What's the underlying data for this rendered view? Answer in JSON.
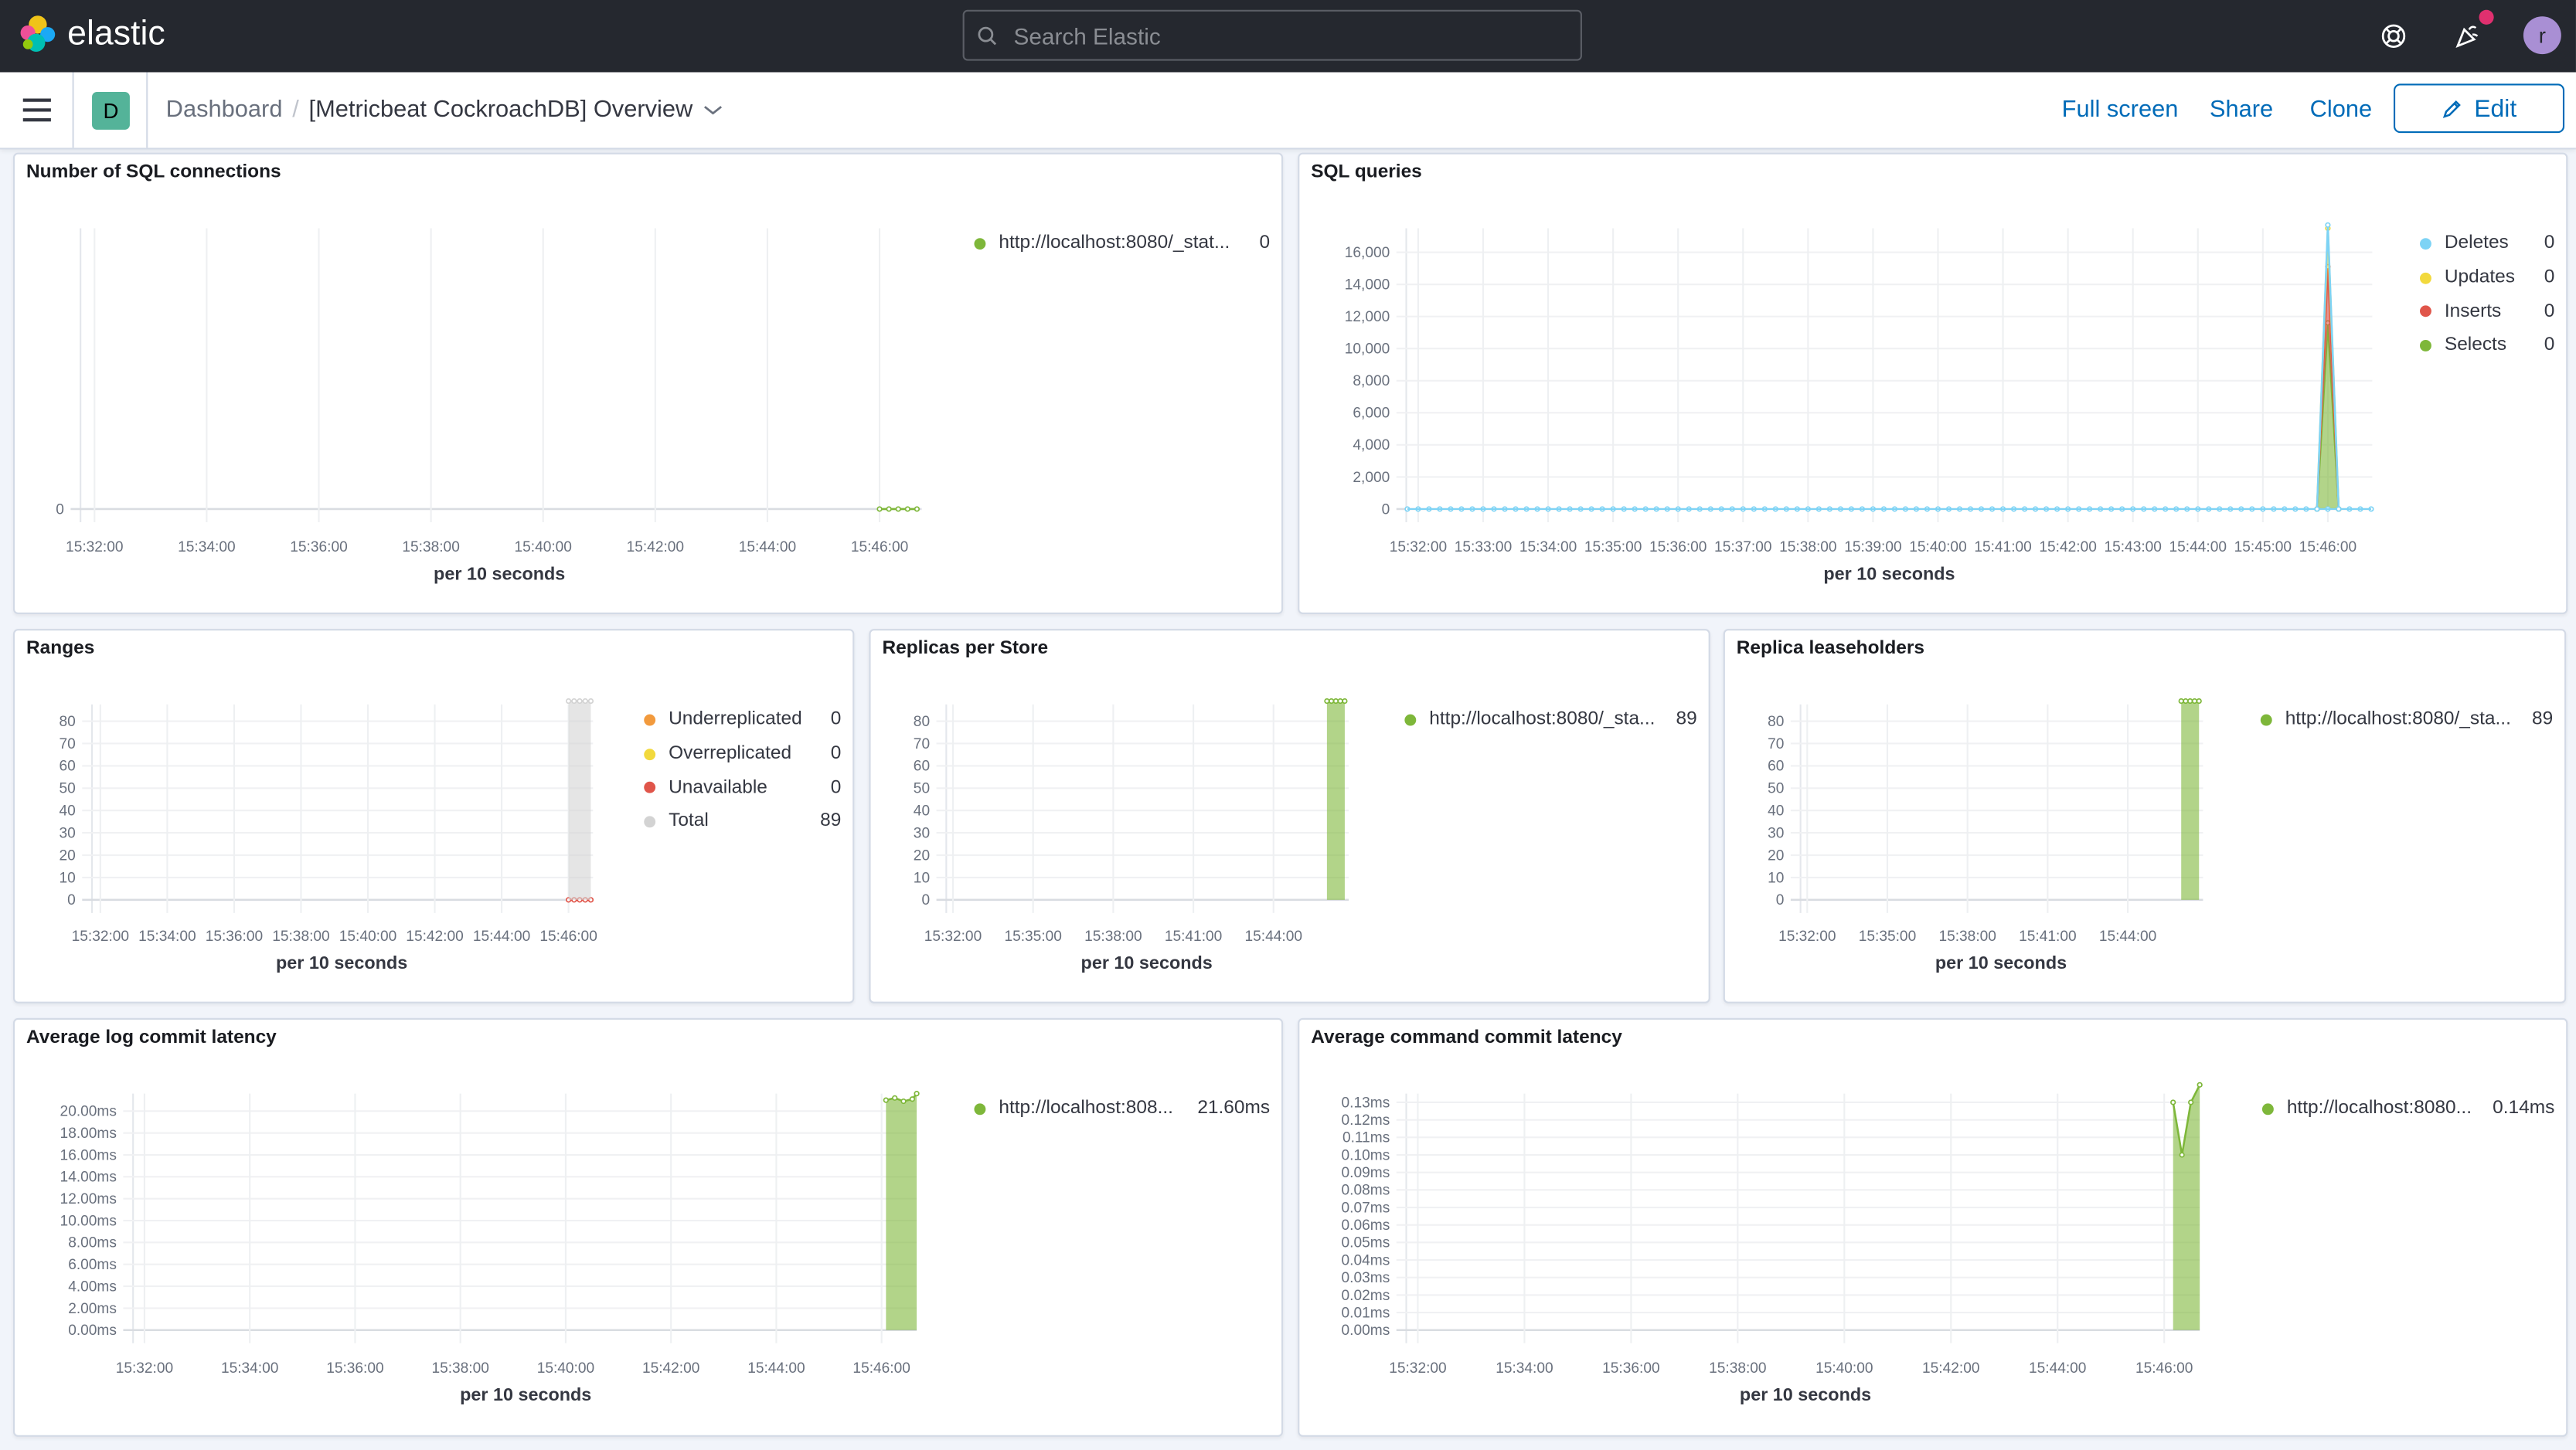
{
  "header": {
    "brand": "elastic",
    "search_placeholder": "Search Elastic",
    "avatar_initial": "r",
    "icons": [
      "help-icon",
      "newsfeed-icon"
    ]
  },
  "nav": {
    "space_initial": "D",
    "breadcrumb_root": "Dashboard",
    "breadcrumb_current": "[Metricbeat CockroachDB] Overview",
    "full_screen": "Full screen",
    "share": "Share",
    "clone": "Clone",
    "edit": "Edit",
    "accent": "#006bb8"
  },
  "chart_data": [
    {
      "title": "Number of SQL connections",
      "type": "line",
      "xlabel": "per 10 seconds",
      "ylim": [
        0,
        1
      ],
      "xlim": [
        "15:31:45",
        "15:46:45"
      ],
      "yticks": [
        {
          "v": 0,
          "label": "0"
        }
      ],
      "xticks": [
        "15:32:00",
        "15:34:00",
        "15:36:00",
        "15:38:00",
        "15:40:00",
        "15:42:00",
        "15:44:00",
        "15:46:00"
      ],
      "legend": [
        {
          "name": "http://localhost:8080/_stat...",
          "value": "0",
          "color": "#7eb73a"
        }
      ],
      "series": [
        {
          "style": "line",
          "color": "#7eb73a",
          "points": [
            [
              "15:46:00",
              0
            ],
            [
              "15:46:10",
              0
            ],
            [
              "15:46:20",
              0
            ],
            [
              "15:46:30",
              0
            ],
            [
              "15:46:40",
              0
            ]
          ]
        }
      ]
    },
    {
      "title": "SQL queries",
      "type": "area",
      "stacked": true,
      "xlabel": "per 10 seconds",
      "ylim": [
        0,
        17500
      ],
      "xlim": [
        "15:31:49",
        "15:46:41"
      ],
      "yticks": [
        {
          "v": 0,
          "label": "0"
        },
        {
          "v": 2000,
          "label": "2,000"
        },
        {
          "v": 4000,
          "label": "4,000"
        },
        {
          "v": 6000,
          "label": "6,000"
        },
        {
          "v": 8000,
          "label": "8,000"
        },
        {
          "v": 10000,
          "label": "10,000"
        },
        {
          "v": 12000,
          "label": "12,000"
        },
        {
          "v": 14000,
          "label": "14,000"
        },
        {
          "v": 16000,
          "label": "16,000"
        }
      ],
      "xticks": [
        "15:32:00",
        "15:33:00",
        "15:34:00",
        "15:35:00",
        "15:36:00",
        "15:37:00",
        "15:38:00",
        "15:39:00",
        "15:40:00",
        "15:41:00",
        "15:42:00",
        "15:43:00",
        "15:44:00",
        "15:45:00",
        "15:46:00"
      ],
      "legend": [
        {
          "name": "Deletes",
          "value": "0",
          "color": "#7dd3f5"
        },
        {
          "name": "Updates",
          "value": "0",
          "color": "#f2d93d"
        },
        {
          "name": "Inserts",
          "value": "0",
          "color": "#e0554a"
        },
        {
          "name": "Selects",
          "value": "0",
          "color": "#7eb73a"
        }
      ],
      "series": [
        {
          "name": "Selects",
          "style": "area",
          "color": "#7eb73a",
          "points": [
            [
              "15:45:50",
              0
            ],
            [
              "15:46:00",
              11600
            ],
            [
              "15:46:10",
              0
            ]
          ]
        },
        {
          "name": "Inserts",
          "style": "area",
          "color": "#e0554a",
          "points": [
            [
              "15:45:50",
              0
            ],
            [
              "15:46:00",
              3500
            ],
            [
              "15:46:10",
              0
            ]
          ]
        },
        {
          "name": "Updates",
          "style": "area",
          "color": "#f2d93d",
          "points": [
            [
              "15:45:50",
              0
            ],
            [
              "15:46:00",
              2400
            ],
            [
              "15:46:10",
              0
            ]
          ]
        },
        {
          "name": "Deletes",
          "style": "area",
          "color": "#7dd3f5",
          "points": [
            [
              "15:45:50",
              0
            ],
            [
              "15:46:00",
              200
            ],
            [
              "15:46:10",
              0
            ]
          ],
          "baseline_from": "15:31:50",
          "baseline_to": "15:46:40"
        }
      ]
    },
    {
      "title": "Ranges",
      "type": "area",
      "stacked": true,
      "xlabel": "per 10 seconds",
      "ylim": [
        0,
        87.5
      ],
      "xlim": [
        "15:31:45",
        "15:46:44"
      ],
      "yticks": [
        {
          "v": 0,
          "label": "0"
        },
        {
          "v": 10,
          "label": "10"
        },
        {
          "v": 20,
          "label": "20"
        },
        {
          "v": 30,
          "label": "30"
        },
        {
          "v": 40,
          "label": "40"
        },
        {
          "v": 50,
          "label": "50"
        },
        {
          "v": 60,
          "label": "60"
        },
        {
          "v": 70,
          "label": "70"
        },
        {
          "v": 80,
          "label": "80"
        }
      ],
      "xticks": [
        "15:32:00",
        "15:34:00",
        "15:36:00",
        "15:38:00",
        "15:40:00",
        "15:42:00",
        "15:44:00",
        "15:46:00"
      ],
      "legend": [
        {
          "name": "Underreplicated",
          "value": "0",
          "color": "#f29a3d"
        },
        {
          "name": "Overreplicated",
          "value": "0",
          "color": "#f2d93d"
        },
        {
          "name": "Unavailable",
          "value": "0",
          "color": "#e0554a"
        },
        {
          "name": "Total",
          "value": "89",
          "color": "#d3d3d3"
        }
      ],
      "series": [
        {
          "name": "Unavailable",
          "style": "line",
          "color": "#e0554a",
          "points": [
            [
              "15:46:00",
              0
            ],
            [
              "15:46:10",
              0
            ],
            [
              "15:46:20",
              0
            ],
            [
              "15:46:30",
              0
            ],
            [
              "15:46:40",
              0
            ]
          ]
        },
        {
          "name": "Total",
          "style": "area",
          "color": "#d3d3d3",
          "points": [
            [
              "15:46:00",
              89
            ],
            [
              "15:46:10",
              89
            ],
            [
              "15:46:20",
              89
            ],
            [
              "15:46:30",
              89
            ],
            [
              "15:46:40",
              89
            ]
          ]
        }
      ]
    },
    {
      "title": "Replicas per Store",
      "type": "area",
      "xlabel": "per 10 seconds",
      "ylim": [
        0,
        87.5
      ],
      "xlim": [
        "15:31:45",
        "15:46:49"
      ],
      "yticks": [
        {
          "v": 0,
          "label": "0"
        },
        {
          "v": 10,
          "label": "10"
        },
        {
          "v": 20,
          "label": "20"
        },
        {
          "v": 30,
          "label": "30"
        },
        {
          "v": 40,
          "label": "40"
        },
        {
          "v": 50,
          "label": "50"
        },
        {
          "v": 60,
          "label": "60"
        },
        {
          "v": 70,
          "label": "70"
        },
        {
          "v": 80,
          "label": "80"
        }
      ],
      "xticks": [
        "15:32:00",
        "15:35:00",
        "15:38:00",
        "15:41:00",
        "15:44:00"
      ],
      "legend": [
        {
          "name": "http://localhost:8080/_sta...",
          "value": "89",
          "color": "#7eb73a"
        }
      ],
      "series": [
        {
          "style": "area",
          "color": "#7eb73a",
          "points": [
            [
              "15:46:00",
              89
            ],
            [
              "15:46:10",
              89
            ],
            [
              "15:46:20",
              89
            ],
            [
              "15:46:30",
              89
            ],
            [
              "15:46:40",
              89
            ]
          ]
        }
      ]
    },
    {
      "title": "Replica leaseholders",
      "type": "area",
      "xlabel": "per 10 seconds",
      "ylim": [
        0,
        87.5
      ],
      "xlim": [
        "15:31:45",
        "15:46:49"
      ],
      "yticks": [
        {
          "v": 0,
          "label": "0"
        },
        {
          "v": 10,
          "label": "10"
        },
        {
          "v": 20,
          "label": "20"
        },
        {
          "v": 30,
          "label": "30"
        },
        {
          "v": 40,
          "label": "40"
        },
        {
          "v": 50,
          "label": "50"
        },
        {
          "v": 60,
          "label": "60"
        },
        {
          "v": 70,
          "label": "70"
        },
        {
          "v": 80,
          "label": "80"
        }
      ],
      "xticks": [
        "15:32:00",
        "15:35:00",
        "15:38:00",
        "15:41:00",
        "15:44:00"
      ],
      "legend": [
        {
          "name": "http://localhost:8080/_sta...",
          "value": "89",
          "color": "#7eb73a"
        }
      ],
      "series": [
        {
          "style": "area",
          "color": "#7eb73a",
          "points": [
            [
              "15:46:00",
              89
            ],
            [
              "15:46:10",
              89
            ],
            [
              "15:46:20",
              89
            ],
            [
              "15:46:30",
              89
            ],
            [
              "15:46:40",
              89
            ]
          ]
        }
      ]
    },
    {
      "title": "Average log commit latency",
      "type": "area",
      "xlabel": "per 10 seconds",
      "ylim": [
        0,
        21.6
      ],
      "xlim": [
        "15:31:47",
        "15:46:40"
      ],
      "yticks": [
        {
          "v": 0,
          "label": "0.00ms"
        },
        {
          "v": 2,
          "label": "2.00ms"
        },
        {
          "v": 4,
          "label": "4.00ms"
        },
        {
          "v": 6,
          "label": "6.00ms"
        },
        {
          "v": 8,
          "label": "8.00ms"
        },
        {
          "v": 10,
          "label": "10.00ms"
        },
        {
          "v": 12,
          "label": "12.00ms"
        },
        {
          "v": 14,
          "label": "14.00ms"
        },
        {
          "v": 16,
          "label": "16.00ms"
        },
        {
          "v": 18,
          "label": "18.00ms"
        },
        {
          "v": 20,
          "label": "20.00ms"
        }
      ],
      "xticks": [
        "15:32:00",
        "15:34:00",
        "15:36:00",
        "15:38:00",
        "15:40:00",
        "15:42:00",
        "15:44:00",
        "15:46:00"
      ],
      "legend": [
        {
          "name": "http://localhost:808...",
          "value": "21.60ms",
          "color": "#7eb73a"
        }
      ],
      "series": [
        {
          "style": "area",
          "color": "#7eb73a",
          "points": [
            [
              "15:46:05",
              21.0
            ],
            [
              "15:46:15",
              21.2
            ],
            [
              "15:46:25",
              20.9
            ],
            [
              "15:46:35",
              21.1
            ],
            [
              "15:46:40",
              21.6
            ]
          ]
        }
      ]
    },
    {
      "title": "Average command commit latency",
      "type": "area",
      "xlabel": "per 10 seconds",
      "ylim": [
        0,
        0.135
      ],
      "xlim": [
        "15:31:47",
        "15:46:40"
      ],
      "yticks": [
        {
          "v": 0,
          "label": "0.00ms"
        },
        {
          "v": 0.01,
          "label": "0.01ms"
        },
        {
          "v": 0.02,
          "label": "0.02ms"
        },
        {
          "v": 0.03,
          "label": "0.03ms"
        },
        {
          "v": 0.04,
          "label": "0.04ms"
        },
        {
          "v": 0.05,
          "label": "0.05ms"
        },
        {
          "v": 0.06,
          "label": "0.06ms"
        },
        {
          "v": 0.07,
          "label": "0.07ms"
        },
        {
          "v": 0.08,
          "label": "0.08ms"
        },
        {
          "v": 0.09,
          "label": "0.09ms"
        },
        {
          "v": 0.1,
          "label": "0.10ms"
        },
        {
          "v": 0.11,
          "label": "0.11ms"
        },
        {
          "v": 0.12,
          "label": "0.12ms"
        },
        {
          "v": 0.13,
          "label": "0.13ms"
        }
      ],
      "xticks": [
        "15:32:00",
        "15:34:00",
        "15:36:00",
        "15:38:00",
        "15:40:00",
        "15:42:00",
        "15:44:00",
        "15:46:00"
      ],
      "legend": [
        {
          "name": "http://localhost:8080...",
          "value": "0.14ms",
          "color": "#7eb73a"
        }
      ],
      "series": [
        {
          "style": "area",
          "color": "#7eb73a",
          "points": [
            [
              "15:46:10",
              0.13
            ],
            [
              "15:46:20",
              0.1
            ],
            [
              "15:46:30",
              0.13
            ],
            [
              "15:46:40",
              0.14
            ]
          ]
        }
      ]
    }
  ]
}
